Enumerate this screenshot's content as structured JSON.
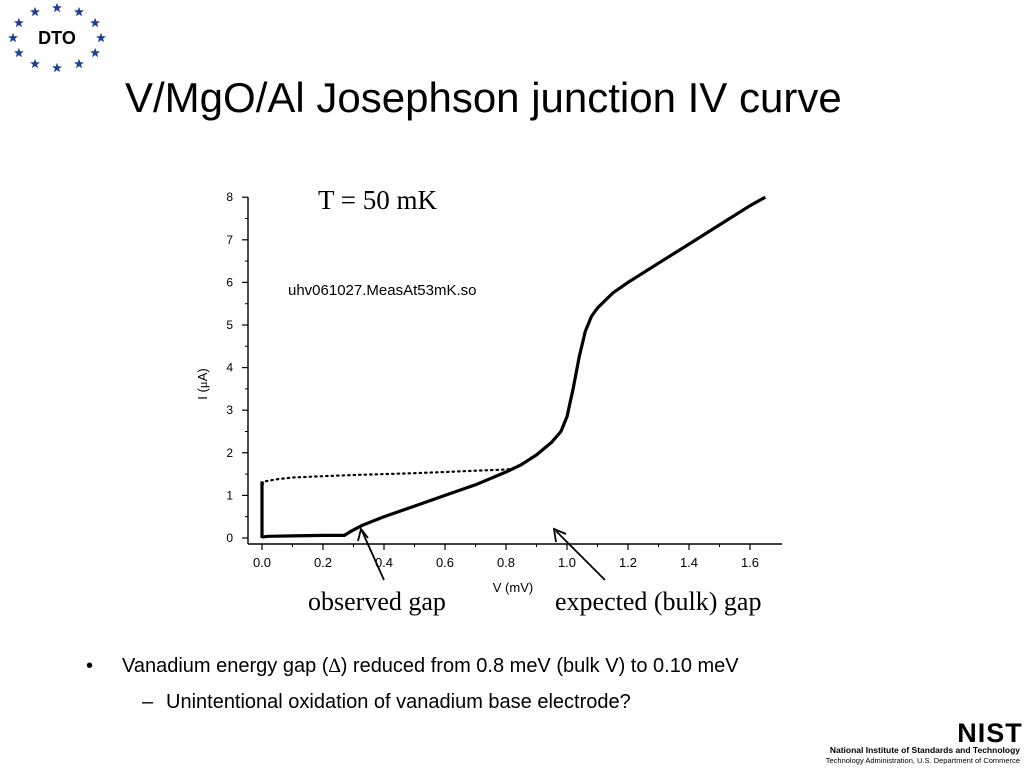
{
  "logo": {
    "text": "DTO",
    "star_color": "#1f3f8f"
  },
  "slide": {
    "title": "V/MgO/Al Josephson junction IV curve"
  },
  "chart_data": {
    "type": "line",
    "title": "",
    "temperature_label": "T = 50 mK",
    "file_label": "uhv061027.MeasAt53mK.so",
    "xlabel": "V (mV)",
    "ylabel_prefix": "I (",
    "ylabel_mu": "μ",
    "ylabel_suffix": "A)",
    "xlim": [
      -0.05,
      1.7
    ],
    "ylim": [
      -0.1,
      8.0
    ],
    "xticks": [
      "0.0",
      "0.2",
      "0.4",
      "0.6",
      "0.8",
      "1.0",
      "1.2",
      "1.4",
      "1.6"
    ],
    "yticks": [
      "0",
      "1",
      "2",
      "3",
      "4",
      "5",
      "6",
      "7",
      "8"
    ],
    "grid": false,
    "series": [
      {
        "style": "solid",
        "x": [
          0.0,
          0.02,
          0.1,
          0.2,
          0.27,
          0.29,
          0.33,
          0.4,
          0.5,
          0.6,
          0.7,
          0.8,
          0.85,
          0.9,
          0.95,
          0.98,
          1.0,
          1.02,
          1.04,
          1.06,
          1.08,
          1.1,
          1.15,
          1.2,
          1.3,
          1.4,
          1.5,
          1.6,
          1.65
        ],
        "y": [
          0.02,
          0.04,
          0.05,
          0.06,
          0.06,
          0.15,
          0.3,
          0.5,
          0.75,
          1.0,
          1.25,
          1.55,
          1.72,
          1.95,
          2.25,
          2.5,
          2.85,
          3.5,
          4.25,
          4.85,
          5.2,
          5.4,
          5.75,
          6.0,
          6.45,
          6.9,
          7.35,
          7.8,
          8.0
        ]
      },
      {
        "style": "dotted",
        "x": [
          0.0,
          0.01,
          0.05,
          0.1,
          0.2,
          0.3,
          0.4,
          0.5,
          0.6,
          0.7,
          0.78,
          0.82
        ],
        "y": [
          1.25,
          1.33,
          1.38,
          1.42,
          1.45,
          1.48,
          1.5,
          1.52,
          1.55,
          1.58,
          1.6,
          1.62
        ]
      },
      {
        "style": "solid",
        "x": [
          0.0,
          0.0
        ],
        "y": [
          0.0,
          1.33
        ]
      }
    ],
    "annotations": [
      {
        "text": "observed gap",
        "arrow_to": [
          0.32,
          0.2
        ]
      },
      {
        "text": "expected (bulk) gap",
        "arrow_to": [
          0.95,
          0.25
        ]
      }
    ]
  },
  "bullets": {
    "b1_marker": "•",
    "b1_prefix": "Vanadium energy gap (",
    "b1_delta": "∆",
    "b1_suffix": ") reduced from 0.8 meV (bulk V) to 0.10 meV",
    "b2_marker": "–",
    "b2_text": "Unintentional oxidation of vanadium base electrode?"
  },
  "footer": {
    "nist_logo": "NIST",
    "line1": "National Institute of Standards and Technology",
    "line2": "Technology Administration, U.S. Department of Commerce"
  }
}
